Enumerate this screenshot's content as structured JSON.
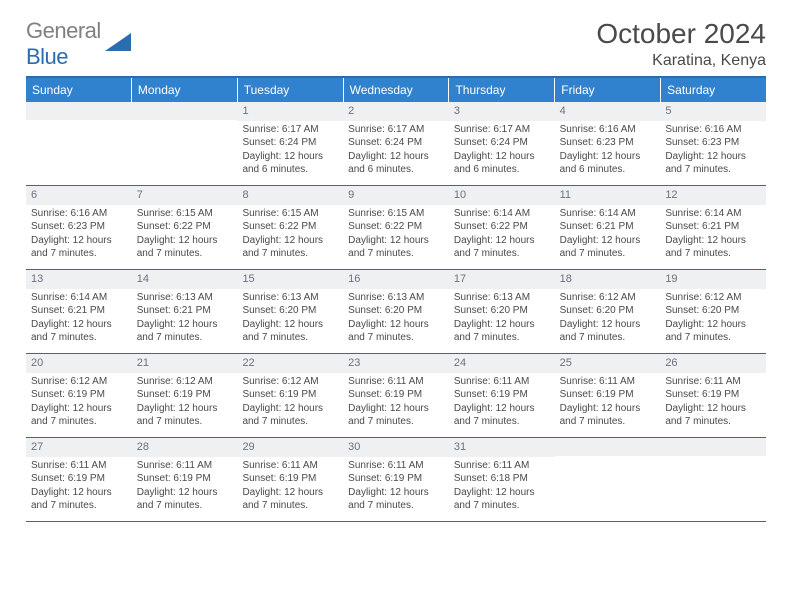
{
  "logo": {
    "general": "General",
    "blue": "Blue",
    "shape_color": "#2b6cb0"
  },
  "header": {
    "month_title": "October 2024",
    "location": "Karatina, Kenya"
  },
  "colors": {
    "header_bg": "#3182ce",
    "header_text": "#ffffff",
    "border": "#2b6cb0",
    "daynum_bg": "#eef0f2",
    "daynum_text": "#6b7280",
    "body_text": "#4a4a4a"
  },
  "dow": [
    "Sunday",
    "Monday",
    "Tuesday",
    "Wednesday",
    "Thursday",
    "Friday",
    "Saturday"
  ],
  "weeks": [
    [
      null,
      null,
      {
        "n": "1",
        "sr": "6:17 AM",
        "ss": "6:24 PM",
        "dl": "12 hours and 6 minutes."
      },
      {
        "n": "2",
        "sr": "6:17 AM",
        "ss": "6:24 PM",
        "dl": "12 hours and 6 minutes."
      },
      {
        "n": "3",
        "sr": "6:17 AM",
        "ss": "6:24 PM",
        "dl": "12 hours and 6 minutes."
      },
      {
        "n": "4",
        "sr": "6:16 AM",
        "ss": "6:23 PM",
        "dl": "12 hours and 6 minutes."
      },
      {
        "n": "5",
        "sr": "6:16 AM",
        "ss": "6:23 PM",
        "dl": "12 hours and 7 minutes."
      }
    ],
    [
      {
        "n": "6",
        "sr": "6:16 AM",
        "ss": "6:23 PM",
        "dl": "12 hours and 7 minutes."
      },
      {
        "n": "7",
        "sr": "6:15 AM",
        "ss": "6:22 PM",
        "dl": "12 hours and 7 minutes."
      },
      {
        "n": "8",
        "sr": "6:15 AM",
        "ss": "6:22 PM",
        "dl": "12 hours and 7 minutes."
      },
      {
        "n": "9",
        "sr": "6:15 AM",
        "ss": "6:22 PM",
        "dl": "12 hours and 7 minutes."
      },
      {
        "n": "10",
        "sr": "6:14 AM",
        "ss": "6:22 PM",
        "dl": "12 hours and 7 minutes."
      },
      {
        "n": "11",
        "sr": "6:14 AM",
        "ss": "6:21 PM",
        "dl": "12 hours and 7 minutes."
      },
      {
        "n": "12",
        "sr": "6:14 AM",
        "ss": "6:21 PM",
        "dl": "12 hours and 7 minutes."
      }
    ],
    [
      {
        "n": "13",
        "sr": "6:14 AM",
        "ss": "6:21 PM",
        "dl": "12 hours and 7 minutes."
      },
      {
        "n": "14",
        "sr": "6:13 AM",
        "ss": "6:21 PM",
        "dl": "12 hours and 7 minutes."
      },
      {
        "n": "15",
        "sr": "6:13 AM",
        "ss": "6:20 PM",
        "dl": "12 hours and 7 minutes."
      },
      {
        "n": "16",
        "sr": "6:13 AM",
        "ss": "6:20 PM",
        "dl": "12 hours and 7 minutes."
      },
      {
        "n": "17",
        "sr": "6:13 AM",
        "ss": "6:20 PM",
        "dl": "12 hours and 7 minutes."
      },
      {
        "n": "18",
        "sr": "6:12 AM",
        "ss": "6:20 PM",
        "dl": "12 hours and 7 minutes."
      },
      {
        "n": "19",
        "sr": "6:12 AM",
        "ss": "6:20 PM",
        "dl": "12 hours and 7 minutes."
      }
    ],
    [
      {
        "n": "20",
        "sr": "6:12 AM",
        "ss": "6:19 PM",
        "dl": "12 hours and 7 minutes."
      },
      {
        "n": "21",
        "sr": "6:12 AM",
        "ss": "6:19 PM",
        "dl": "12 hours and 7 minutes."
      },
      {
        "n": "22",
        "sr": "6:12 AM",
        "ss": "6:19 PM",
        "dl": "12 hours and 7 minutes."
      },
      {
        "n": "23",
        "sr": "6:11 AM",
        "ss": "6:19 PM",
        "dl": "12 hours and 7 minutes."
      },
      {
        "n": "24",
        "sr": "6:11 AM",
        "ss": "6:19 PM",
        "dl": "12 hours and 7 minutes."
      },
      {
        "n": "25",
        "sr": "6:11 AM",
        "ss": "6:19 PM",
        "dl": "12 hours and 7 minutes."
      },
      {
        "n": "26",
        "sr": "6:11 AM",
        "ss": "6:19 PM",
        "dl": "12 hours and 7 minutes."
      }
    ],
    [
      {
        "n": "27",
        "sr": "6:11 AM",
        "ss": "6:19 PM",
        "dl": "12 hours and 7 minutes."
      },
      {
        "n": "28",
        "sr": "6:11 AM",
        "ss": "6:19 PM",
        "dl": "12 hours and 7 minutes."
      },
      {
        "n": "29",
        "sr": "6:11 AM",
        "ss": "6:19 PM",
        "dl": "12 hours and 7 minutes."
      },
      {
        "n": "30",
        "sr": "6:11 AM",
        "ss": "6:19 PM",
        "dl": "12 hours and 7 minutes."
      },
      {
        "n": "31",
        "sr": "6:11 AM",
        "ss": "6:18 PM",
        "dl": "12 hours and 7 minutes."
      },
      null,
      null
    ]
  ],
  "labels": {
    "sunrise": "Sunrise:",
    "sunset": "Sunset:",
    "daylight": "Daylight:"
  }
}
